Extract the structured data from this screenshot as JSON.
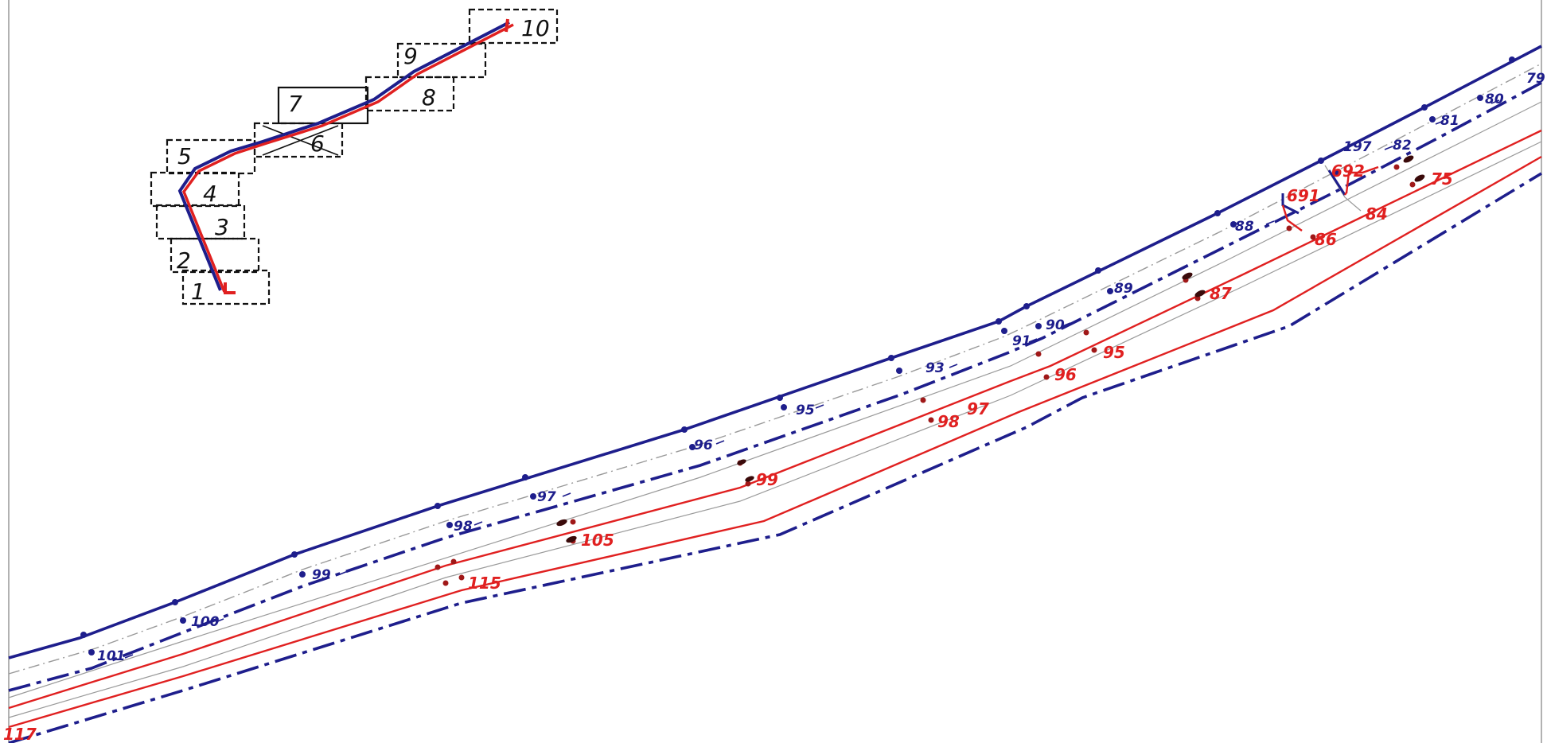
{
  "colors": {
    "blue": "#1e1e8c",
    "red": "#e02020",
    "darkred": "#a01818",
    "grey": "#8c8c8c",
    "black": "#111111"
  },
  "index_map": {
    "sheets": [
      "1",
      "2",
      "3",
      "4",
      "5",
      "6",
      "7",
      "8",
      "9",
      "10"
    ]
  },
  "labels": {
    "blue": [
      "101",
      "100",
      "99",
      "98",
      "97",
      "96",
      "95",
      "93",
      "91",
      "90",
      "89",
      "88",
      "197",
      "82",
      "81",
      "80",
      "79"
    ],
    "red": [
      "117",
      "115",
      "105",
      "99",
      "98",
      "97",
      "96",
      "95",
      "87",
      "86",
      "691",
      "692",
      "84",
      "75"
    ]
  }
}
